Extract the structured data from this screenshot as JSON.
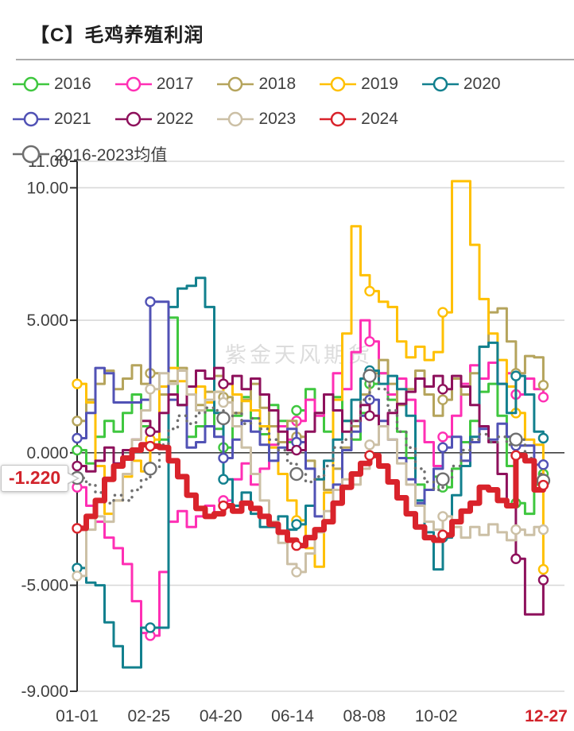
{
  "title": "【C】毛鸡养殖利润",
  "watermark": "紫金天风期货",
  "callout": {
    "value_label": "-1.220"
  },
  "chart_data": {
    "type": "line",
    "step": true,
    "title": "【C】毛鸡养殖利润",
    "legend_position": "top",
    "grid": true,
    "ylim": [
      -9,
      11
    ],
    "y_ticks": [
      {
        "value": 11,
        "label": "11.00"
      },
      {
        "value": 10,
        "label": "10.00"
      },
      {
        "value": 5,
        "label": "5.000"
      },
      {
        "value": 0,
        "label": "0.000"
      },
      {
        "value": -5,
        "label": "-5.000"
      },
      {
        "value": -9,
        "label": "-9.000"
      }
    ],
    "x_tick_days": [
      0,
      55,
      110,
      165,
      220,
      275,
      361
    ],
    "x_tick_labels": [
      "01-01",
      "02-25",
      "04-20",
      "06-14",
      "08-08",
      "10-02",
      "12-27"
    ],
    "x_week_step_days": 7,
    "last_value": -1.22,
    "last_date_label": "12-27",
    "series": [
      {
        "name": "2016",
        "color": "#3fc73f",
        "width": 3,
        "draw_order": 0,
        "values": [
          0.1,
          -0.4,
          0.6,
          1.2,
          0.8,
          1.5,
          2.2,
          1.0,
          0.3,
          0.5,
          5.1,
          1.8,
          0.6,
          1.0,
          1.6,
          0.9,
          0.2,
          1.4,
          2.1,
          1.3,
          0.7,
          1.8,
          1.2,
          0.4,
          1.6,
          2.4,
          1.5,
          0.8,
          2.1,
          1.2,
          0.5,
          1.5,
          2.6,
          3.0,
          2.0,
          0.8,
          -0.2,
          -1.2,
          -1.4,
          -0.9,
          -1.3,
          -0.6,
          0.4,
          1.2,
          2.3,
          2.6,
          1.4,
          -0.5,
          -1.9,
          -2.3,
          -1.2,
          -0.8
        ]
      },
      {
        "name": "2017",
        "color": "#ff2fb4",
        "width": 3,
        "draw_order": 0,
        "values": [
          -1.3,
          -2.0,
          -2.6,
          -3.2,
          -3.6,
          -4.2,
          -5.6,
          -6.8,
          -6.9,
          -4.5,
          -2.6,
          -2.2,
          -2.8,
          -2.4,
          -2.0,
          -2.3,
          -1.8,
          -1.0,
          -0.4,
          -1.2,
          -0.6,
          0.3,
          1.0,
          0.5,
          1.2,
          2.0,
          1.4,
          2.2,
          3.0,
          2.4,
          3.8,
          5.0,
          4.2,
          3.0,
          2.2,
          2.8,
          2.0,
          1.2,
          0.4,
          -0.5,
          0.6,
          1.4,
          2.6,
          3.3,
          2.8,
          3.4,
          2.6,
          3.0,
          2.2,
          2.8,
          2.4,
          2.1
        ]
      },
      {
        "name": "2018",
        "color": "#b5a45c",
        "width": 3,
        "draw_order": 0,
        "values": [
          1.2,
          2.0,
          2.6,
          3.1,
          2.4,
          2.8,
          3.3,
          2.6,
          3.0,
          2.2,
          2.7,
          3.2,
          2.5,
          1.8,
          2.3,
          2.9,
          2.1,
          1.5,
          2.0,
          2.6,
          1.7,
          1.0,
          0.4,
          1.2,
          0.6,
          -0.3,
          -1.0,
          -1.4,
          -0.6,
          0.2,
          1.0,
          2.2,
          3.0,
          3.5,
          2.6,
          1.8,
          2.4,
          3.1,
          2.2,
          1.4,
          2.0,
          2.8,
          2.2,
          3.0,
          4.0,
          5.3,
          5.45,
          4.2,
          3.0,
          3.65,
          3.6,
          2.55
        ]
      },
      {
        "name": "2019",
        "color": "#ffc000",
        "width": 3,
        "draw_order": 0,
        "values": [
          2.6,
          1.9,
          -0.5,
          -2.3,
          -1.8,
          -0.9,
          -0.3,
          -0.7,
          0.5,
          2.5,
          3.2,
          2.7,
          2.2,
          2.5,
          1.9,
          2.3,
          2.6,
          2.2,
          1.95,
          1.6,
          1.0,
          0.2,
          -0.8,
          -1.8,
          -2.55,
          -3.6,
          -4.3,
          -1.5,
          2.0,
          4.5,
          8.55,
          6.7,
          6.1,
          5.7,
          5.5,
          4.2,
          3.6,
          4.0,
          3.5,
          3.8,
          5.3,
          10.25,
          10.25,
          7.85,
          5.8,
          4.5,
          3.5,
          2.5,
          1.5,
          0.5,
          0.3,
          -4.4
        ]
      },
      {
        "name": "2020",
        "color": "#12808e",
        "width": 3,
        "draw_order": 0,
        "values": [
          -4.35,
          -4.9,
          -5.0,
          -6.4,
          -7.3,
          -8.1,
          -8.1,
          -6.6,
          -6.6,
          -6.6,
          5.5,
          6.2,
          6.3,
          6.6,
          5.5,
          1.5,
          -1.0,
          -2.0,
          -1.5,
          -2.3,
          -2.8,
          -2.8,
          -2.4,
          -2.9,
          -2.7,
          -2.0,
          -1.0,
          -0.3,
          0.5,
          1.2,
          2.0,
          2.8,
          3.1,
          2.6,
          2.9,
          2.4,
          1.4,
          -1.8,
          -3.0,
          -4.4,
          -3.2,
          -1.6,
          -0.5,
          0.6,
          4.0,
          4.15,
          2.6,
          1.5,
          2.9,
          2.2,
          0.8,
          0.55
        ]
      },
      {
        "name": "2021",
        "color": "#5152b5",
        "width": 3,
        "draw_order": 0,
        "values": [
          0.55,
          1.5,
          3.2,
          3.0,
          1.9,
          1.9,
          1.9,
          2.0,
          5.7,
          5.7,
          2.0,
          1.8,
          0.2,
          0.4,
          1.0,
          0.6,
          -0.2,
          0.5,
          1.2,
          0.8,
          0.3,
          -0.3,
          0.2,
          0.9,
          0.4,
          -0.6,
          -2.4,
          -2.65,
          -1.2,
          0.1,
          0.8,
          1.4,
          2.0,
          1.2,
          0.5,
          -0.2,
          -1.0,
          -1.9,
          -1.4,
          -0.6,
          0.2,
          0.6,
          -0.3,
          0.4,
          0.9,
          0.5,
          1.1,
          0.6,
          0.27,
          0.27,
          -0.45,
          -0.45
        ]
      },
      {
        "name": "2022",
        "color": "#8e115c",
        "width": 3,
        "draw_order": 0,
        "values": [
          -0.5,
          -0.7,
          -0.3,
          0.2,
          -0.4,
          0.1,
          0.5,
          1.2,
          0.8,
          1.5,
          2.2,
          1.8,
          2.5,
          3.1,
          2.8,
          3.2,
          2.6,
          2.9,
          2.4,
          2.8,
          2.2,
          1.6,
          0.8,
          0.1,
          0.1,
          0.8,
          1.5,
          2.2,
          1.6,
          0.8,
          1.2,
          1.8,
          1.4,
          1.0,
          1.5,
          1.85,
          2.3,
          2.8,
          2.5,
          2.9,
          2.4,
          2.9,
          2.5,
          1.8,
          1.0,
          0.4,
          -0.8,
          -2.0,
          -4.0,
          -6.1,
          -6.1,
          -4.8
        ]
      },
      {
        "name": "2023",
        "color": "#ccc0a6",
        "width": 3,
        "draw_order": 0,
        "values": [
          -4.65,
          -2.9,
          -2.4,
          -2.6,
          -1.8,
          -0.8,
          0.5,
          1.6,
          2.4,
          3.0,
          2.6,
          3.1,
          2.2,
          1.6,
          2.0,
          2.3,
          1.9,
          1.0,
          0.2,
          -0.8,
          -1.8,
          -2.6,
          -3.4,
          -4.2,
          -4.5,
          -3.8,
          -3.0,
          -2.2,
          -1.4,
          -1.0,
          -1.2,
          -0.6,
          0.3,
          1.0,
          0.5,
          -0.4,
          -1.2,
          -2.0,
          -2.6,
          -2.9,
          -2.4,
          -2.8,
          -3.2,
          -2.8,
          -3.1,
          -2.7,
          -3.0,
          -3.3,
          -2.9,
          -3.1,
          -2.8,
          -2.9
        ]
      },
      {
        "name": "2024",
        "color": "#d9232b",
        "width": 7,
        "draw_order": 2,
        "values": [
          -2.85,
          -2.4,
          -1.8,
          -1.0,
          -0.5,
          -0.2,
          0.1,
          0.3,
          0.25,
          0.2,
          -0.3,
          -0.9,
          -1.6,
          -2.1,
          -2.4,
          -2.3,
          -2.0,
          -2.2,
          -1.9,
          -2.1,
          -2.4,
          -2.7,
          -3.0,
          -3.3,
          -3.5,
          -3.2,
          -2.9,
          -2.6,
          -1.9,
          -1.3,
          -0.8,
          -0.4,
          -0.1,
          -0.5,
          -1.1,
          -1.7,
          -2.3,
          -2.8,
          -3.2,
          -3.3,
          -3.1,
          -2.6,
          -2.2,
          -1.9,
          -1.3,
          -1.4,
          -1.8,
          -2.0,
          -0.1,
          -0.3,
          -1.4,
          -1.22
        ]
      },
      {
        "name": "2016-2023均值",
        "color": "#6f6f6f",
        "width": 3.5,
        "dotted": true,
        "draw_order": 1,
        "values": [
          -0.95,
          -1.2,
          -1.5,
          -1.9,
          -1.6,
          -1.8,
          -1.4,
          -1.0,
          -0.6,
          0.3,
          0.9,
          1.4,
          1.1,
          1.5,
          1.7,
          1.6,
          1.3,
          1.5,
          1.1,
          1.3,
          0.9,
          0.5,
          0.1,
          -0.4,
          -0.8,
          -1.1,
          -0.9,
          -0.5,
          0.2,
          0.5,
          1.2,
          2.0,
          2.9,
          2.4,
          1.6,
          0.8,
          0.2,
          -0.6,
          -1.1,
          -1.4,
          -1.0,
          -0.5,
          0.1,
          0.5,
          0.7,
          0.4,
          0.6,
          0.3,
          0.5,
          -0.2,
          -0.8,
          -1.05
        ]
      }
    ],
    "style": {
      "grid_color": "#d9d9d9",
      "zero_line_color": "#404040",
      "axis_color": "#333333",
      "label_color": "#404040",
      "highlight_color": "#d2232b"
    }
  }
}
